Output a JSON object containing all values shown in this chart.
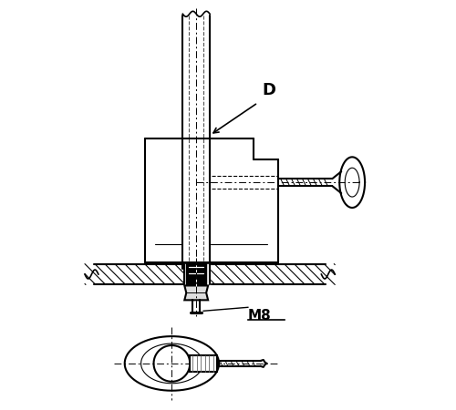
{
  "bg_color": "#ffffff",
  "line_color": "#000000",
  "figsize": [
    5.0,
    4.5
  ],
  "dpi": 100,
  "label_D": "D",
  "label_M8": "M8"
}
